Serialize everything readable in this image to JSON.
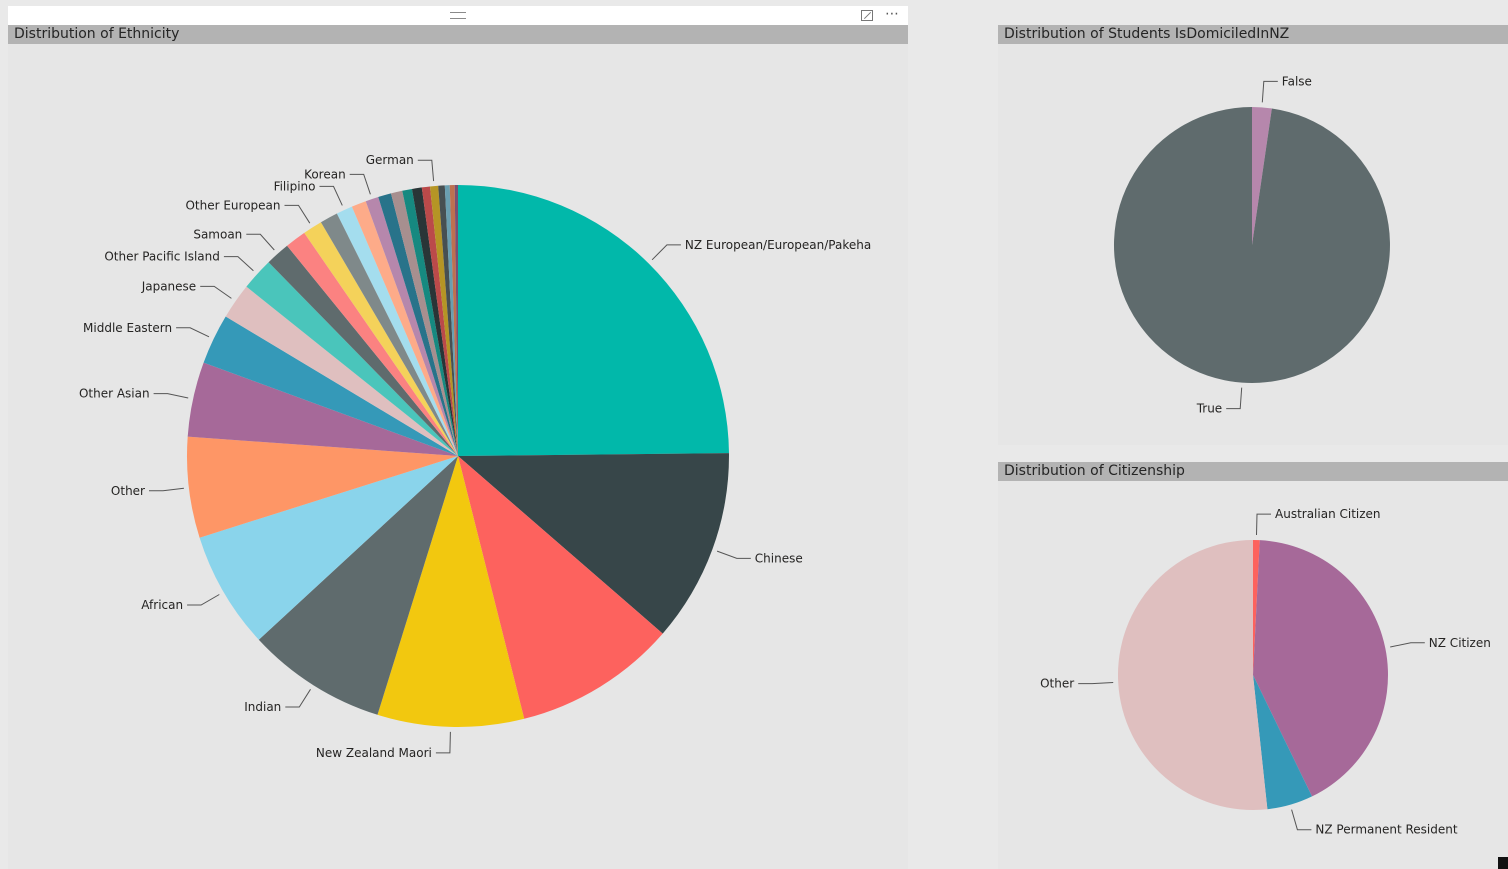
{
  "charts": {
    "ethnicity": {
      "title": "Distribution of Ethnicity"
    },
    "domiciled": {
      "title": "Distribution of Students IsDomiciledInNZ"
    },
    "citizenship": {
      "title": "Distribution of Citizenship"
    }
  },
  "toolbar": {
    "more_label": "⋯"
  },
  "chart_data": [
    {
      "type": "pie",
      "title": "Distribution of Ethnicity",
      "slices": [
        {
          "label": "NZ European/European/Pakeha",
          "value": 25.6,
          "color": "#01b8aa"
        },
        {
          "label": "Chinese",
          "value": 11.9,
          "color": "#374649"
        },
        {
          "label": "",
          "value": 10.0,
          "color": "#fd625e"
        },
        {
          "label": "New Zealand Maori",
          "value": 9.0,
          "color": "#f2c80f"
        },
        {
          "label": "Indian",
          "value": 8.6,
          "color": "#5f6b6d"
        },
        {
          "label": "African",
          "value": 7.2,
          "color": "#8ad4eb"
        },
        {
          "label": "Other",
          "value": 6.2,
          "color": "#fe9666"
        },
        {
          "label": "Other Asian",
          "value": 4.6,
          "color": "#a66999"
        },
        {
          "label": "Middle Eastern",
          "value": 3.1,
          "color": "#3599b8"
        },
        {
          "label": "Japanese",
          "value": 2.2,
          "color": "#dfbfbf"
        },
        {
          "label": "Other Pacific Island",
          "value": 2.0,
          "color": "#4ac5bb"
        },
        {
          "label": "Samoan",
          "value": 1.5,
          "color": "#5f6b6d"
        },
        {
          "label": "",
          "value": 1.3,
          "color": "#fb8281"
        },
        {
          "label": "Other European",
          "value": 1.2,
          "color": "#f4d25a"
        },
        {
          "label": "",
          "value": 1.1,
          "color": "#7f898a"
        },
        {
          "label": "Filipino",
          "value": 1.0,
          "color": "#a4ddee"
        },
        {
          "label": "",
          "value": 0.9,
          "color": "#fdab89"
        },
        {
          "label": "Korean",
          "value": 0.8,
          "color": "#b687ac"
        },
        {
          "label": "",
          "value": 0.8,
          "color": "#28738a"
        },
        {
          "label": "",
          "value": 0.7,
          "color": "#a78f8f"
        },
        {
          "label": "",
          "value": 0.6,
          "color": "#168980"
        },
        {
          "label": "",
          "value": 0.6,
          "color": "#293537"
        },
        {
          "label": "",
          "value": 0.5,
          "color": "#bb4a4a"
        },
        {
          "label": "German",
          "value": 0.5,
          "color": "#b59525"
        },
        {
          "label": "",
          "value": 0.4,
          "color": "#475052"
        },
        {
          "label": "",
          "value": 0.3,
          "color": "#6a9fb0"
        },
        {
          "label": "",
          "value": 0.3,
          "color": "#bd7150"
        },
        {
          "label": "",
          "value": 0.2,
          "color": "#7b4f71"
        }
      ]
    },
    {
      "type": "pie",
      "title": "Distribution of Students IsDomiciledInNZ",
      "slices": [
        {
          "label": "False",
          "value": 2.3,
          "color": "#b687ac"
        },
        {
          "label": "True",
          "value": 97.7,
          "color": "#5f6b6d"
        }
      ]
    },
    {
      "type": "pie",
      "title": "Distribution of Citizenship",
      "slices": [
        {
          "label": "Australian Citizen",
          "value": 0.8,
          "color": "#fd625e"
        },
        {
          "label": "NZ Citizen",
          "value": 42.0,
          "color": "#a66999"
        },
        {
          "label": "NZ Permanent Resident",
          "value": 5.5,
          "color": "#3599b8"
        },
        {
          "label": "Other",
          "value": 51.7,
          "color": "#dfbfbf"
        }
      ]
    }
  ]
}
